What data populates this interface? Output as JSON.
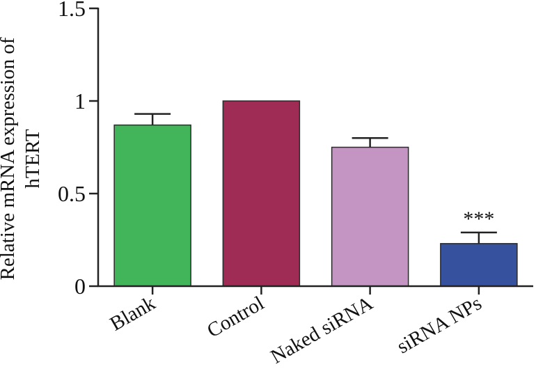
{
  "chart_data": {
    "type": "bar",
    "ylabel": "Relative mRNA expression of hTERT",
    "ylabel_lines": [
      "Relative mRNA expression of",
      "hTERT"
    ],
    "ylim": [
      0,
      1.5
    ],
    "yticks": [
      0,
      0.5,
      1,
      1.5
    ],
    "ytick_labels": [
      "0",
      "0.5",
      "1",
      "1.5"
    ],
    "categories": [
      "Blank",
      "Control",
      "Naked siRNA",
      "siRNA NPs"
    ],
    "values": [
      0.87,
      1.0,
      0.75,
      0.23
    ],
    "errors": [
      0.06,
      0.0,
      0.05,
      0.06
    ],
    "colors": [
      "#42b55a",
      "#9e2c55",
      "#c495c3",
      "#36519e"
    ],
    "annotations": [
      {
        "category": "siRNA NPs",
        "text": "***"
      }
    ],
    "grid": false,
    "legend": "none"
  }
}
